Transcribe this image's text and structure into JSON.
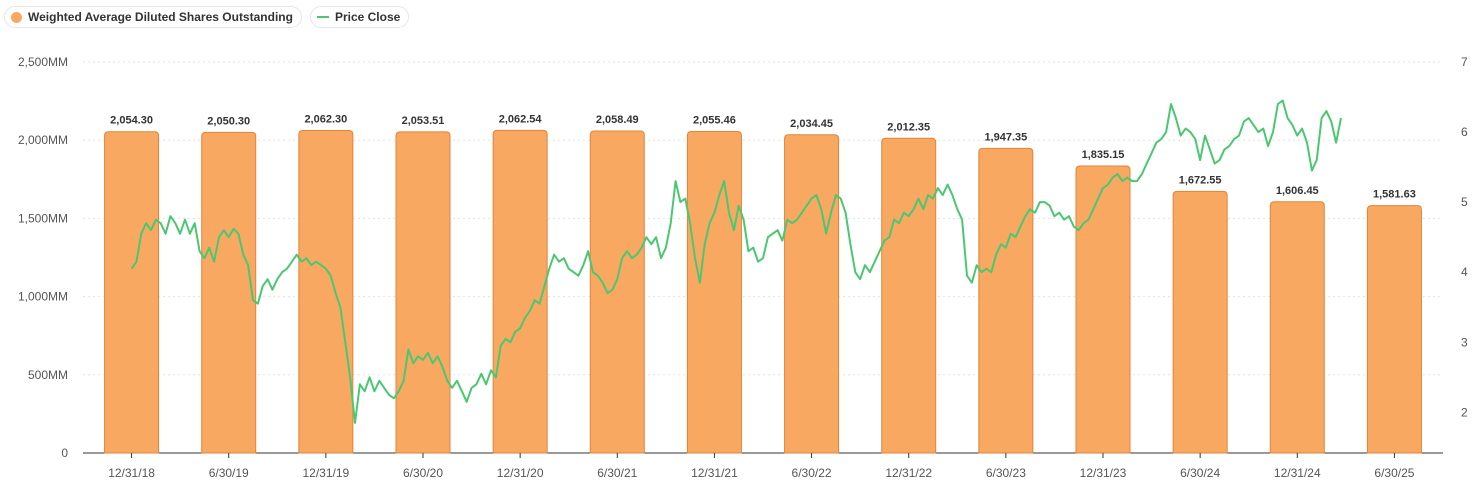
{
  "colors": {
    "bar": "#f9a862",
    "bar_border": "#e0843a",
    "line": "#4cc771",
    "grid": "#e3e3e3",
    "axis": "#333333"
  },
  "legend": [
    {
      "label": "Weighted Average Diluted Shares Outstanding",
      "swatch": "dot",
      "color": "#f9a862"
    },
    {
      "label": "Price Close",
      "swatch": "line",
      "color": "#4cc771"
    }
  ],
  "chart_data": {
    "type": "bar",
    "categories": [
      "12/31/18",
      "6/30/19",
      "12/31/19",
      "6/30/20",
      "12/31/20",
      "6/30/21",
      "12/31/21",
      "6/30/22",
      "12/31/22",
      "6/30/23",
      "12/31/23",
      "6/30/24",
      "12/31/24",
      "6/30/25"
    ],
    "series": [
      {
        "name": "Weighted Average Diluted Shares Outstanding",
        "type": "bar",
        "axis": "left",
        "values": [
          2054.3,
          2050.3,
          2062.3,
          2053.51,
          2062.54,
          2058.49,
          2055.46,
          2034.45,
          2012.35,
          1947.35,
          1835.15,
          1672.55,
          1606.45,
          1581.63
        ],
        "labels": [
          "2,054.30",
          "2,050.30",
          "2,062.30",
          "2,053.51",
          "2,062.54",
          "2,058.49",
          "2,055.46",
          "2,034.45",
          "2,012.35",
          "1,947.35",
          "1,835.15",
          "1,672.55",
          "1,606.45",
          "1,581.63"
        ]
      },
      {
        "name": "Price Close",
        "type": "line",
        "axis": "right",
        "points": [
          [
            0.0,
            4.05
          ],
          [
            0.05,
            4.15
          ],
          [
            0.1,
            4.55
          ],
          [
            0.15,
            4.7
          ],
          [
            0.2,
            4.6
          ],
          [
            0.25,
            4.75
          ],
          [
            0.3,
            4.7
          ],
          [
            0.35,
            4.55
          ],
          [
            0.4,
            4.8
          ],
          [
            0.45,
            4.7
          ],
          [
            0.5,
            4.55
          ],
          [
            0.55,
            4.75
          ],
          [
            0.6,
            4.55
          ],
          [
            0.65,
            4.7
          ],
          [
            0.7,
            4.3
          ],
          [
            0.75,
            4.2
          ],
          [
            0.8,
            4.35
          ],
          [
            0.85,
            4.15
          ],
          [
            0.9,
            4.5
          ],
          [
            0.95,
            4.6
          ],
          [
            1.0,
            4.5
          ],
          [
            1.05,
            4.62
          ],
          [
            1.1,
            4.55
          ],
          [
            1.15,
            4.25
          ],
          [
            1.2,
            4.1
          ],
          [
            1.25,
            3.6
          ],
          [
            1.3,
            3.55
          ],
          [
            1.35,
            3.8
          ],
          [
            1.4,
            3.9
          ],
          [
            1.45,
            3.75
          ],
          [
            1.5,
            3.9
          ],
          [
            1.55,
            4.0
          ],
          [
            1.6,
            4.05
          ],
          [
            1.65,
            4.15
          ],
          [
            1.7,
            4.25
          ],
          [
            1.75,
            4.15
          ],
          [
            1.8,
            4.2
          ],
          [
            1.85,
            4.1
          ],
          [
            1.9,
            4.15
          ],
          [
            1.95,
            4.1
          ],
          [
            2.0,
            4.05
          ],
          [
            2.05,
            3.95
          ],
          [
            2.1,
            3.7
          ],
          [
            2.15,
            3.5
          ],
          [
            2.2,
            3.0
          ],
          [
            2.25,
            2.5
          ],
          [
            2.3,
            1.85
          ],
          [
            2.35,
            2.4
          ],
          [
            2.4,
            2.3
          ],
          [
            2.45,
            2.5
          ],
          [
            2.5,
            2.3
          ],
          [
            2.55,
            2.45
          ],
          [
            2.6,
            2.35
          ],
          [
            2.65,
            2.25
          ],
          [
            2.7,
            2.2
          ],
          [
            2.75,
            2.3
          ],
          [
            2.8,
            2.45
          ],
          [
            2.85,
            2.9
          ],
          [
            2.9,
            2.7
          ],
          [
            2.95,
            2.8
          ],
          [
            3.0,
            2.75
          ],
          [
            3.05,
            2.85
          ],
          [
            3.1,
            2.7
          ],
          [
            3.15,
            2.8
          ],
          [
            3.2,
            2.65
          ],
          [
            3.25,
            2.45
          ],
          [
            3.3,
            2.35
          ],
          [
            3.35,
            2.45
          ],
          [
            3.4,
            2.3
          ],
          [
            3.45,
            2.15
          ],
          [
            3.5,
            2.35
          ],
          [
            3.55,
            2.4
          ],
          [
            3.6,
            2.55
          ],
          [
            3.65,
            2.4
          ],
          [
            3.7,
            2.6
          ],
          [
            3.75,
            2.5
          ],
          [
            3.8,
            2.95
          ],
          [
            3.85,
            3.05
          ],
          [
            3.9,
            3.0
          ],
          [
            3.95,
            3.15
          ],
          [
            4.0,
            3.2
          ],
          [
            4.05,
            3.35
          ],
          [
            4.1,
            3.45
          ],
          [
            4.15,
            3.6
          ],
          [
            4.2,
            3.55
          ],
          [
            4.25,
            3.8
          ],
          [
            4.3,
            4.05
          ],
          [
            4.35,
            4.25
          ],
          [
            4.4,
            4.15
          ],
          [
            4.45,
            4.2
          ],
          [
            4.5,
            4.05
          ],
          [
            4.55,
            4.0
          ],
          [
            4.6,
            3.95
          ],
          [
            4.65,
            4.1
          ],
          [
            4.7,
            4.3
          ],
          [
            4.75,
            4.0
          ],
          [
            4.8,
            3.95
          ],
          [
            4.85,
            3.85
          ],
          [
            4.9,
            3.7
          ],
          [
            4.95,
            3.75
          ],
          [
            5.0,
            3.9
          ],
          [
            5.05,
            4.2
          ],
          [
            5.1,
            4.3
          ],
          [
            5.15,
            4.2
          ],
          [
            5.2,
            4.25
          ],
          [
            5.25,
            4.35
          ],
          [
            5.3,
            4.5
          ],
          [
            5.35,
            4.4
          ],
          [
            5.4,
            4.5
          ],
          [
            5.45,
            4.2
          ],
          [
            5.5,
            4.35
          ],
          [
            5.55,
            4.7
          ],
          [
            5.6,
            5.3
          ],
          [
            5.65,
            5.0
          ],
          [
            5.7,
            5.05
          ],
          [
            5.75,
            4.7
          ],
          [
            5.8,
            4.2
          ],
          [
            5.85,
            3.85
          ],
          [
            5.9,
            4.4
          ],
          [
            5.95,
            4.7
          ],
          [
            6.0,
            4.85
          ],
          [
            6.05,
            5.1
          ],
          [
            6.1,
            5.3
          ],
          [
            6.15,
            4.85
          ],
          [
            6.2,
            4.6
          ],
          [
            6.25,
            4.95
          ],
          [
            6.3,
            4.75
          ],
          [
            6.35,
            4.3
          ],
          [
            6.4,
            4.35
          ],
          [
            6.45,
            4.15
          ],
          [
            6.5,
            4.2
          ],
          [
            6.55,
            4.5
          ],
          [
            6.6,
            4.55
          ],
          [
            6.65,
            4.6
          ],
          [
            6.7,
            4.45
          ],
          [
            6.75,
            4.75
          ],
          [
            6.8,
            4.7
          ],
          [
            6.85,
            4.75
          ],
          [
            6.9,
            4.85
          ],
          [
            6.95,
            4.95
          ],
          [
            7.0,
            5.05
          ],
          [
            7.05,
            5.1
          ],
          [
            7.1,
            4.9
          ],
          [
            7.15,
            4.55
          ],
          [
            7.2,
            4.85
          ],
          [
            7.25,
            5.1
          ],
          [
            7.3,
            5.05
          ],
          [
            7.35,
            4.85
          ],
          [
            7.4,
            4.4
          ],
          [
            7.45,
            4.0
          ],
          [
            7.5,
            3.9
          ],
          [
            7.55,
            4.1
          ],
          [
            7.6,
            4.0
          ],
          [
            7.65,
            4.15
          ],
          [
            7.7,
            4.3
          ],
          [
            7.75,
            4.45
          ],
          [
            7.8,
            4.5
          ],
          [
            7.85,
            4.75
          ],
          [
            7.9,
            4.7
          ],
          [
            7.95,
            4.85
          ],
          [
            8.0,
            4.8
          ],
          [
            8.05,
            4.9
          ],
          [
            8.1,
            5.05
          ],
          [
            8.15,
            4.9
          ],
          [
            8.2,
            5.1
          ],
          [
            8.25,
            5.05
          ],
          [
            8.3,
            5.2
          ],
          [
            8.35,
            5.1
          ],
          [
            8.4,
            5.25
          ],
          [
            8.45,
            5.1
          ],
          [
            8.5,
            4.9
          ],
          [
            8.55,
            4.75
          ],
          [
            8.6,
            3.95
          ],
          [
            8.65,
            3.85
          ],
          [
            8.7,
            4.1
          ],
          [
            8.75,
            4.0
          ],
          [
            8.8,
            4.05
          ],
          [
            8.85,
            4.0
          ],
          [
            8.9,
            4.25
          ],
          [
            8.95,
            4.4
          ],
          [
            9.0,
            4.35
          ],
          [
            9.05,
            4.55
          ],
          [
            9.1,
            4.5
          ],
          [
            9.15,
            4.65
          ],
          [
            9.2,
            4.8
          ],
          [
            9.25,
            4.9
          ],
          [
            9.3,
            4.85
          ],
          [
            9.35,
            5.0
          ],
          [
            9.4,
            5.0
          ],
          [
            9.45,
            4.95
          ],
          [
            9.5,
            4.8
          ],
          [
            9.55,
            4.85
          ],
          [
            9.6,
            4.75
          ],
          [
            9.65,
            4.8
          ],
          [
            9.7,
            4.65
          ],
          [
            9.75,
            4.6
          ],
          [
            9.8,
            4.7
          ],
          [
            9.85,
            4.75
          ],
          [
            9.9,
            4.9
          ],
          [
            9.95,
            5.05
          ],
          [
            10.0,
            5.2
          ],
          [
            10.05,
            5.25
          ],
          [
            10.1,
            5.35
          ],
          [
            10.15,
            5.4
          ],
          [
            10.2,
            5.3
          ],
          [
            10.25,
            5.35
          ],
          [
            10.3,
            5.3
          ],
          [
            10.35,
            5.3
          ],
          [
            10.4,
            5.4
          ],
          [
            10.45,
            5.55
          ],
          [
            10.5,
            5.7
          ],
          [
            10.55,
            5.85
          ],
          [
            10.6,
            5.9
          ],
          [
            10.65,
            6.0
          ],
          [
            10.7,
            6.4
          ],
          [
            10.75,
            6.2
          ],
          [
            10.8,
            5.95
          ],
          [
            10.85,
            6.05
          ],
          [
            10.9,
            6.0
          ],
          [
            10.95,
            5.9
          ],
          [
            11.0,
            5.6
          ],
          [
            11.05,
            5.95
          ],
          [
            11.1,
            5.75
          ],
          [
            11.15,
            5.55
          ],
          [
            11.2,
            5.6
          ],
          [
            11.25,
            5.75
          ],
          [
            11.3,
            5.8
          ],
          [
            11.35,
            5.9
          ],
          [
            11.4,
            5.95
          ],
          [
            11.45,
            6.15
          ],
          [
            11.5,
            6.2
          ],
          [
            11.55,
            6.1
          ],
          [
            11.6,
            6.0
          ],
          [
            11.65,
            6.05
          ],
          [
            11.7,
            5.8
          ],
          [
            11.75,
            6.0
          ],
          [
            11.8,
            6.4
          ],
          [
            11.85,
            6.45
          ],
          [
            11.9,
            6.2
          ],
          [
            11.95,
            6.1
          ],
          [
            12.0,
            5.95
          ],
          [
            12.05,
            6.05
          ],
          [
            12.1,
            5.85
          ],
          [
            12.15,
            5.45
          ],
          [
            12.2,
            5.6
          ],
          [
            12.25,
            6.2
          ],
          [
            12.3,
            6.3
          ],
          [
            12.35,
            6.15
          ],
          [
            12.4,
            5.85
          ],
          [
            12.45,
            6.2
          ]
        ]
      }
    ],
    "y_left": {
      "ticks": [
        0,
        500,
        1000,
        1500,
        2000,
        2500
      ],
      "tick_labels": [
        "0",
        "500MM",
        "1,000MM",
        "1,500MM",
        "2,000MM",
        "2,500MM"
      ],
      "range": [
        0,
        2500
      ]
    },
    "y_right": {
      "ticks": [
        2,
        3,
        4,
        5,
        6,
        7
      ],
      "tick_labels": [
        "2",
        "3",
        "4",
        "5",
        "6",
        "7"
      ],
      "range": [
        1.42,
        7.0
      ]
    },
    "grid": true,
    "legend_position": "top-left"
  }
}
